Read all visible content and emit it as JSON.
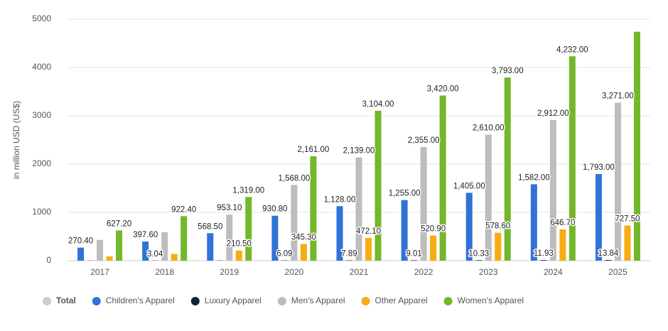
{
  "chart_data": {
    "type": "bar",
    "y_label": "in million USD (US$)",
    "categories": [
      "2017",
      "2018",
      "2019",
      "2020",
      "2021",
      "2022",
      "2023",
      "2024",
      "2025"
    ],
    "ylim": [
      0,
      5000
    ],
    "yticks": [
      0,
      1000,
      2000,
      3000,
      4000,
      5000
    ],
    "grid": true,
    "series": [
      {
        "name": "Total",
        "color": "#cccccc",
        "visible": false,
        "values": [
          null,
          null,
          null,
          null,
          null,
          null,
          null,
          null,
          null
        ]
      },
      {
        "name": "Children's Apparel",
        "color": "#2f73d8",
        "values": [
          270.4,
          397.6,
          568.5,
          930.8,
          1128,
          1255,
          1405,
          1582,
          1793
        ],
        "value_labels": [
          "270.40",
          "397.60",
          "568.50",
          "930.80",
          "1,128.00",
          "1,255.00",
          "1,405.00",
          "1,582.00",
          "1,793.00"
        ]
      },
      {
        "name": "Luxury Apparel",
        "color": "#13233b",
        "values": [
          2.5,
          3.04,
          4.5,
          6.09,
          7.89,
          9.01,
          10.33,
          11.93,
          13.84
        ],
        "value_labels": [
          null,
          "3.04",
          null,
          "6.09",
          "7.89",
          "9.01",
          "10.33",
          "11.93",
          "13.84"
        ]
      },
      {
        "name": "Men's Apparel",
        "color": "#bdbdbd",
        "values": [
          430,
          590,
          953.1,
          1568,
          2139,
          2355,
          2610,
          2912,
          3271
        ],
        "value_labels": [
          null,
          null,
          "953.10",
          "1,568.00",
          "2,139.00",
          "2,355.00",
          "2,610.00",
          "2,912.00",
          "3,271.00"
        ]
      },
      {
        "name": "Other Apparel",
        "color": "#f6ac12",
        "values": [
          90,
          140,
          210.5,
          345.3,
          472.1,
          520.9,
          578.6,
          646.7,
          727.5
        ],
        "value_labels": [
          null,
          null,
          "210.50",
          "345.30",
          "472.10",
          "520.90",
          "578.60",
          "646.70",
          "727.50"
        ]
      },
      {
        "name": "Women's Apparel",
        "color": "#74b72a",
        "values": [
          627.2,
          922.4,
          1319,
          2161,
          3104,
          3420,
          3793,
          4232,
          4740
        ],
        "value_labels": [
          "627.20",
          "922.40",
          "1,319.00",
          "2,161.00",
          "3,104.00",
          "3,420.00",
          "3,793.00",
          "4,232.00",
          null
        ]
      }
    ]
  }
}
